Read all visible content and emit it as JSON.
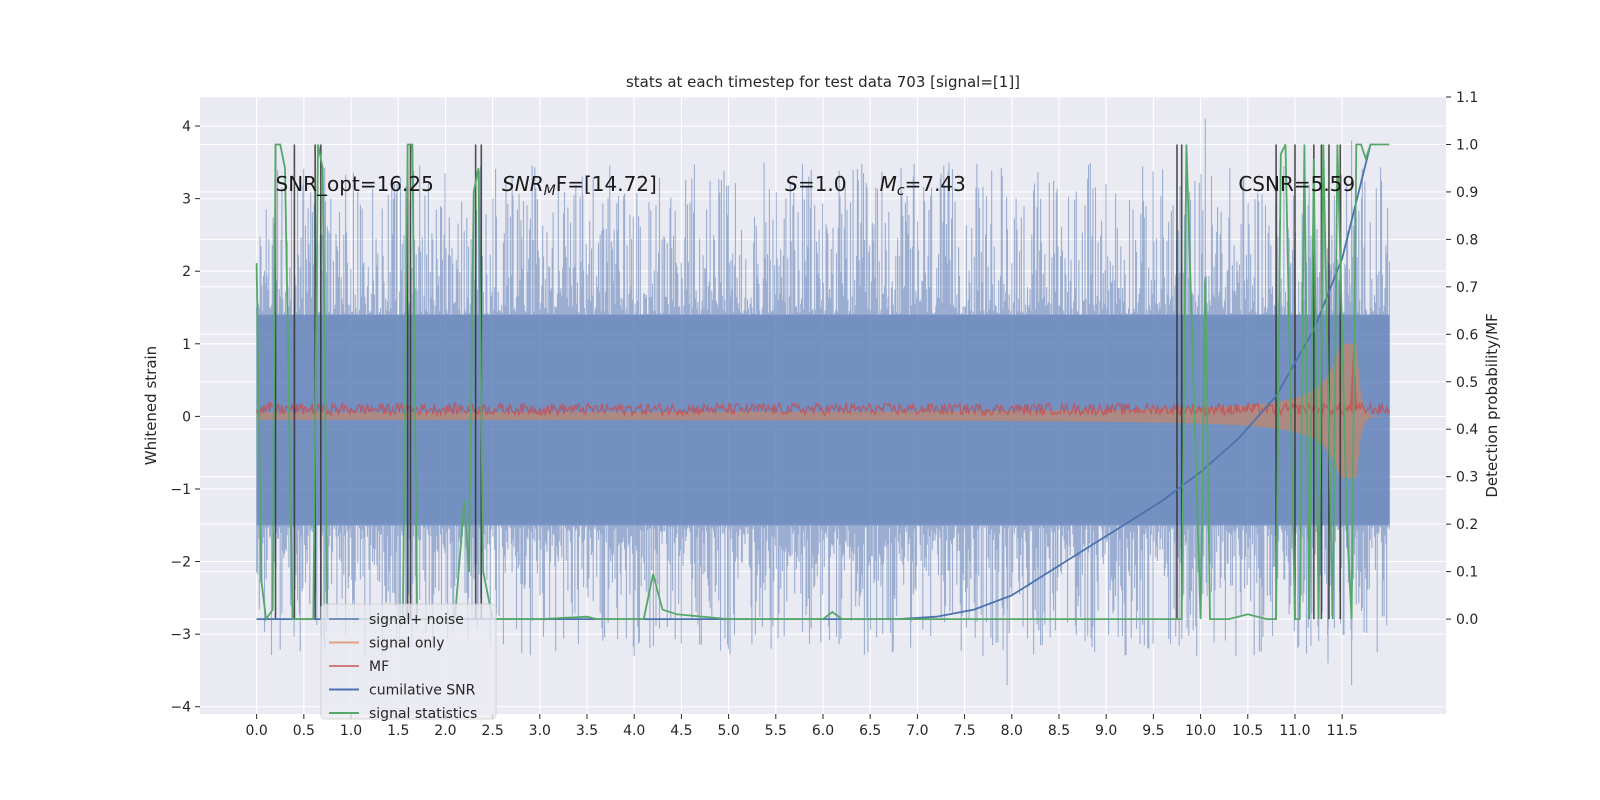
{
  "chart_data": {
    "type": "line",
    "title": "stats at each timestep for test data 703 [signal=[1]]",
    "ylabel": "Whitened strain",
    "y2label": "Detection probability/MF",
    "xlim": [
      -0.6,
      12.6
    ],
    "ylim": [
      -4.1,
      4.4
    ],
    "y2lim": [
      -0.2,
      1.1
    ],
    "x_ticks": [
      "0.0",
      "0.5",
      "1.0",
      "1.5",
      "2.0",
      "2.5",
      "3.0",
      "3.5",
      "4.0",
      "4.5",
      "5.0",
      "5.5",
      "6.0",
      "6.5",
      "7.0",
      "7.5",
      "8.0",
      "8.5",
      "9.0",
      "9.5",
      "10.0",
      "10.5",
      "11.0",
      "11.5"
    ],
    "y_ticks": [
      "4",
      "3",
      "2",
      "1",
      "0",
      "−1",
      "−2",
      "−3",
      "−4"
    ],
    "y2_ticks": [
      "1.1",
      "1.0",
      "0.9",
      "0.8",
      "0.7",
      "0.6",
      "0.5",
      "0.4",
      "0.3",
      "0.2",
      "0.1",
      "0.0"
    ],
    "grid": true,
    "legend_position": "lower-left",
    "annotations": [
      {
        "text": "SNR_opt=16.25",
        "x": 0.2,
        "y": 3.2
      },
      {
        "text": "SNR",
        "sub": "M",
        "tail": "F=[14.72]",
        "italic": true,
        "x": 2.6,
        "y": 3.2
      },
      {
        "text": "S",
        "tail": "=1.0",
        "italic": true,
        "x": 5.6,
        "y": 3.2
      },
      {
        "text": "M",
        "sub": "c",
        "tail": "=7.43",
        "italic": true,
        "x": 6.6,
        "y": 3.2
      },
      {
        "text": "CSNR=5.59",
        "x": 10.4,
        "y": 3.2
      }
    ],
    "series": [
      {
        "name": "signal+ noise",
        "color": "#4c72b0",
        "axis": "left",
        "kind": "noise",
        "t_range": [
          0.0,
          12.0
        ],
        "band": [
          -1.5,
          1.4
        ],
        "peak_max": 4.1,
        "peak_min": -3.7
      },
      {
        "name": "signal only",
        "color": "#dd8452",
        "axis": "left",
        "kind": "chirp",
        "t_range": [
          0.0,
          12.0
        ],
        "amp_start": 0.05,
        "amp_end": 1.0
      },
      {
        "name": "MF",
        "color": "#c44e52",
        "axis": "left",
        "kind": "mf",
        "t_range": [
          0.0,
          12.0
        ],
        "level": 0.1,
        "peak": 1.0
      },
      {
        "name": "cumilative SNR",
        "color": "#4c72b0",
        "axis": "right",
        "t_range": [
          0.0,
          11.8
        ],
        "x": [
          0.0,
          6.8,
          7.2,
          7.6,
          8.0,
          8.4,
          8.8,
          9.2,
          9.6,
          10.0,
          10.4,
          10.8,
          11.2,
          11.5,
          11.8
        ],
        "y": [
          0.0,
          0.0,
          0.005,
          0.02,
          0.05,
          0.1,
          0.15,
          0.2,
          0.25,
          0.31,
          0.38,
          0.47,
          0.61,
          0.76,
          1.0
        ]
      },
      {
        "name": "signal statistics",
        "color": "#55a868",
        "axis": "right",
        "x": [
          0.0,
          0.05,
          0.1,
          0.17,
          0.2,
          0.25,
          0.3,
          0.38,
          0.42,
          0.6,
          0.65,
          0.7,
          0.75,
          1.55,
          1.6,
          1.65,
          1.7,
          2.1,
          2.2,
          2.25,
          2.3,
          2.35,
          2.4,
          2.5,
          3.0,
          3.5,
          3.6,
          3.9,
          4.1,
          4.2,
          4.3,
          4.45,
          5.0,
          6.0,
          6.1,
          6.2,
          7.0,
          9.5,
          9.8,
          9.85,
          10.0,
          10.05,
          10.1,
          10.3,
          10.5,
          10.7,
          10.8,
          10.85,
          10.9,
          11.0,
          11.05,
          11.1,
          11.15,
          11.2,
          11.25,
          11.3,
          11.4,
          11.45,
          11.55,
          11.6,
          11.65,
          11.7,
          11.75,
          11.8,
          11.9,
          12.0
        ],
        "y": [
          0.75,
          0.08,
          0.0,
          0.02,
          1.0,
          1.0,
          0.95,
          0.0,
          0.0,
          0.0,
          1.0,
          0.95,
          0.0,
          0.0,
          1.0,
          1.0,
          0.0,
          0.0,
          0.25,
          0.1,
          0.9,
          0.95,
          0.1,
          0.0,
          0.0,
          0.005,
          0.0,
          0.0,
          0.0,
          0.095,
          0.02,
          0.01,
          0.0,
          0.0,
          0.015,
          0.0,
          0.0,
          0.0,
          0.0,
          1.0,
          0.0,
          0.72,
          0.0,
          0.0,
          0.01,
          0.0,
          0.0,
          0.98,
          1.0,
          0.0,
          0.0,
          1.0,
          0.0,
          0.97,
          0.0,
          1.0,
          0.0,
          1.0,
          0.2,
          0.0,
          1.0,
          1.0,
          0.97,
          1.0,
          1.0,
          1.0
        ]
      },
      {
        "name": "",
        "color": "#333333",
        "axis": "right",
        "kind": "vlines",
        "x": [
          0.2,
          0.4,
          0.62,
          0.68,
          1.6,
          1.63,
          2.32,
          2.38,
          9.75,
          9.8,
          10.8,
          11.0,
          11.2,
          11.28,
          11.36,
          11.48
        ]
      }
    ]
  }
}
